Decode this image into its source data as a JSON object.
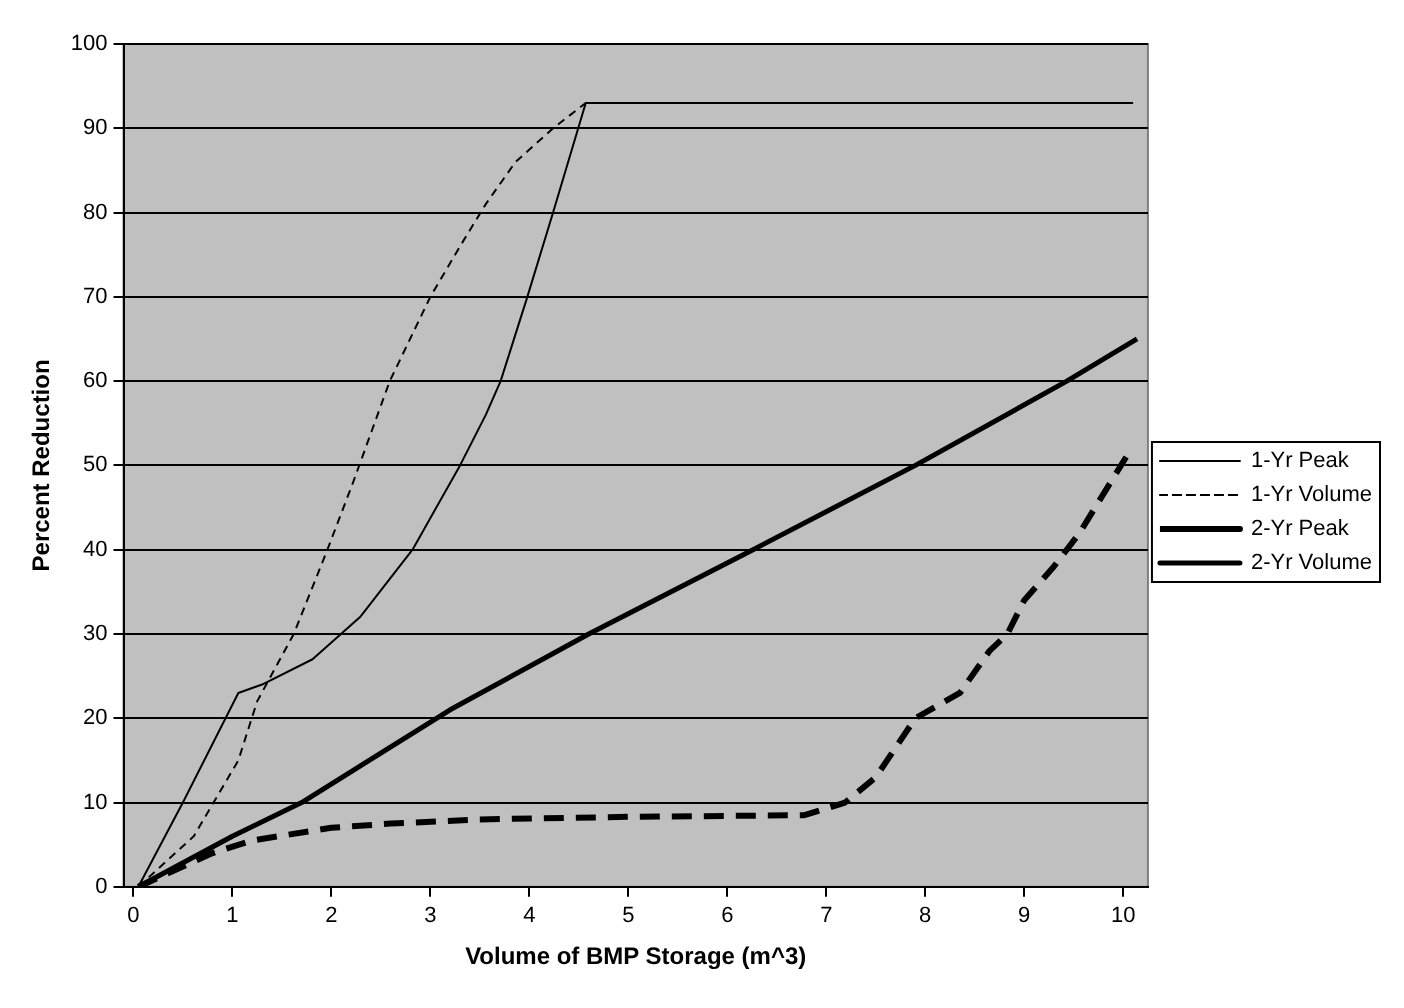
{
  "chart_data": {
    "type": "line",
    "xlabel": "Volume of BMP Storage (m^3)",
    "ylabel": "Percent Reduction",
    "xlim": [
      -0.1,
      10.25
    ],
    "xticks": [
      0,
      1,
      2,
      3,
      4,
      5,
      6,
      7,
      8,
      9,
      10
    ],
    "ylim": [
      0,
      100
    ],
    "yticks": [
      0,
      10,
      20,
      30,
      40,
      50,
      60,
      70,
      80,
      90,
      100
    ],
    "grid": "y",
    "legend": "right",
    "marker": "none",
    "series": [
      {
        "name": "1-Yr Peak",
        "color": "#000000",
        "line_style": "solid",
        "x": [
          0.05,
          0.5,
          1.06,
          1.3,
          1.81,
          2.29,
          2.82,
          3.3,
          3.56,
          3.71,
          3.98,
          4.24,
          4.57,
          10.1
        ],
        "values": [
          0,
          10,
          23,
          24,
          27,
          32,
          40,
          50,
          56,
          60,
          70,
          80,
          93,
          93
        ]
      },
      {
        "name": "1-Yr Volume",
        "color": "#000000",
        "line_style": "dashed",
        "x": [
          0.05,
          0.61,
          1.06,
          1.25,
          1.62,
          1.96,
          2.22,
          2.59,
          3.0,
          3.3,
          3.56,
          3.86,
          4.24,
          4.57,
          10.1
        ],
        "values": [
          0,
          6,
          15,
          22,
          30,
          40,
          48,
          60,
          70,
          76,
          81,
          86,
          90,
          93,
          93
        ]
      },
      {
        "name": "2-Yr Peak",
        "color": "#000000",
        "line_style": "dashed",
        "x": [
          0.05,
          0.8,
          1.2,
          2.0,
          2.6,
          3.5,
          5.0,
          6.78,
          7.19,
          7.5,
          7.9,
          8.35,
          8.65,
          8.83,
          9.0,
          9.3,
          9.56,
          10.03
        ],
        "values": [
          0,
          4,
          5.5,
          7,
          7.5,
          8,
          8.3,
          8.5,
          10,
          13,
          20,
          23,
          28,
          30,
          34,
          38,
          42,
          51
        ]
      },
      {
        "name": "2-Yr Volume",
        "color": "#000000",
        "line_style": "solid",
        "x": [
          0.05,
          1.0,
          1.7,
          3.2,
          4.6,
          6.26,
          7.9,
          9.43,
          10.14
        ],
        "values": [
          0,
          6,
          10,
          21,
          30,
          40,
          50,
          60,
          65
        ]
      }
    ]
  }
}
